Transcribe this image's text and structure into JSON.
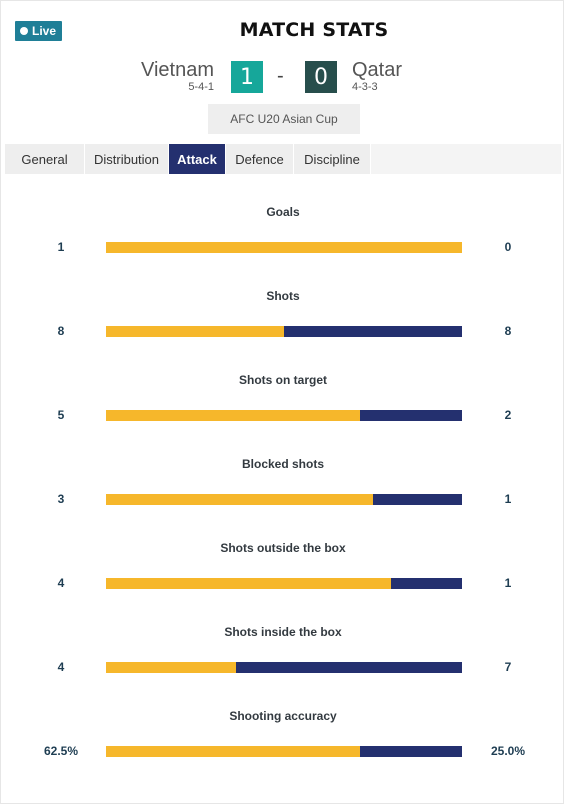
{
  "live_label": "Live",
  "page_title": "MATCH STATS",
  "match": {
    "home": {
      "name": "Vietnam",
      "formation": "5-4-1",
      "score": "1"
    },
    "away": {
      "name": "Qatar",
      "formation": "4-3-3",
      "score": "0"
    },
    "separator": "-",
    "competition": "AFC U20 Asian Cup"
  },
  "tabs": [
    {
      "label": "General",
      "active": false
    },
    {
      "label": "Distribution",
      "active": false
    },
    {
      "label": "Attack",
      "active": true
    },
    {
      "label": "Defence",
      "active": false
    },
    {
      "label": "Discipline",
      "active": false
    }
  ],
  "colors": {
    "home_bar": "#f6b72b",
    "away_bar": "#24306f",
    "active_tab": "#24306f",
    "live_badge": "#1f7f97",
    "home_score_bg": "#16a79a",
    "away_score_bg": "#274e4c"
  },
  "stats": [
    {
      "label": "Goals",
      "home": "1",
      "away": "0",
      "home_share": 1.0
    },
    {
      "label": "Shots",
      "home": "8",
      "away": "8",
      "home_share": 0.5
    },
    {
      "label": "Shots on target",
      "home": "5",
      "away": "2",
      "home_share": 0.714
    },
    {
      "label": "Blocked shots",
      "home": "3",
      "away": "1",
      "home_share": 0.75
    },
    {
      "label": "Shots outside the box",
      "home": "4",
      "away": "1",
      "home_share": 0.8
    },
    {
      "label": "Shots inside the box",
      "home": "4",
      "away": "7",
      "home_share": 0.364
    },
    {
      "label": "Shooting accuracy",
      "home": "62.5%",
      "away": "25.0%",
      "home_share": 0.714
    }
  ]
}
